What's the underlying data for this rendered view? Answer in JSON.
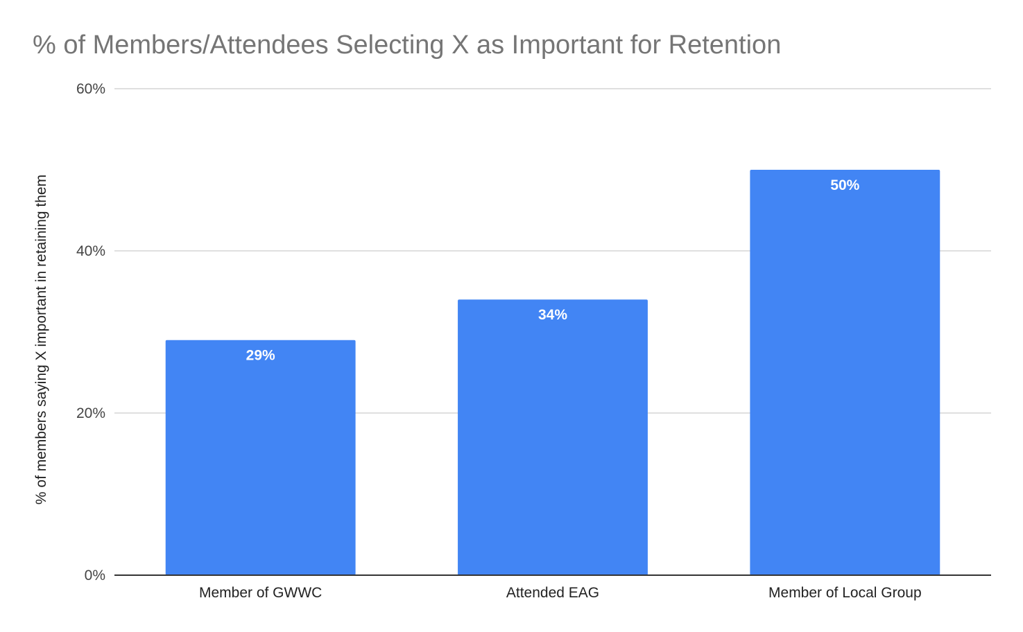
{
  "chart_data": {
    "type": "bar",
    "title": "% of Members/Attendees Selecting X as Important for Retention",
    "xlabel": "",
    "ylabel": "% of members saying X important in retaining them",
    "categories": [
      "Member of GWWC",
      "Attended EAG",
      "Member of Local Group"
    ],
    "values": [
      29,
      34,
      50
    ],
    "data_labels": [
      "29%",
      "34%",
      "50%"
    ],
    "ylim": [
      0,
      60
    ],
    "yticks": [
      0,
      20,
      40,
      60
    ],
    "ytick_labels": [
      "0%",
      "20%",
      "40%",
      "60%"
    ],
    "grid": true,
    "legend": "none",
    "bar_color": "#4285f4"
  }
}
